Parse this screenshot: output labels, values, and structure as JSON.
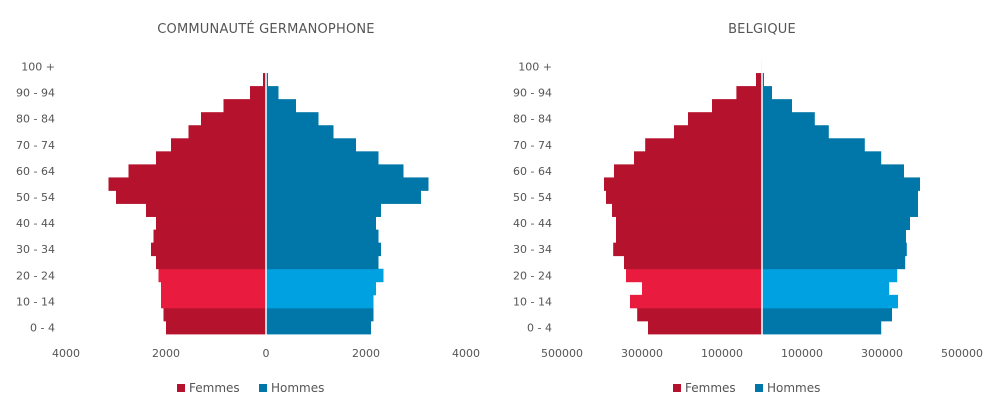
{
  "chart_data": [
    {
      "type": "bar",
      "orientation": "horizontal",
      "layout": "population-pyramid",
      "title": "COMMUNAUTÉ GERMANOPHONE",
      "categories": [
        "0 - 4",
        "5 - 9",
        "10 - 14",
        "15 - 19",
        "20 - 24",
        "25 - 29",
        "30 - 34",
        "35 - 39",
        "40 - 44",
        "45 - 49",
        "50 - 54",
        "55 - 59",
        "60 - 64",
        "65 - 69",
        "70 - 74",
        "75 - 79",
        "80 - 84",
        "85 - 89",
        "90 - 94",
        "95 - 99",
        "100 +"
      ],
      "category_ticks": [
        "0 - 4",
        "10 - 14",
        "20 - 24",
        "30 - 34",
        "40 - 44",
        "50 - 54",
        "60 - 64",
        "70 - 74",
        "80 - 84",
        "90 - 94",
        "100 +"
      ],
      "xlim": [
        -4000,
        4000
      ],
      "x_ticks": [
        -4000,
        -2000,
        0,
        2000,
        4000
      ],
      "x_tick_labels": [
        "4000",
        "2000",
        "0",
        "2000",
        "4000"
      ],
      "highlight_categories": [
        "20 - 24",
        "15 - 19",
        "10 - 14"
      ],
      "series": [
        {
          "name": "Femmes",
          "side": "left",
          "values": [
            2000,
            2050,
            2100,
            2100,
            2150,
            2200,
            2300,
            2250,
            2200,
            2400,
            3000,
            3150,
            2750,
            2200,
            1900,
            1550,
            1300,
            850,
            320,
            60,
            10
          ]
        },
        {
          "name": "Hommes",
          "side": "right",
          "values": [
            2100,
            2150,
            2150,
            2200,
            2350,
            2250,
            2300,
            2250,
            2200,
            2300,
            3100,
            3250,
            2750,
            2250,
            1800,
            1350,
            1050,
            600,
            250,
            40,
            5
          ]
        }
      ],
      "colors": {
        "femmes": "#b5122d",
        "femmes_highlight": "#e91c3f",
        "hommes": "#0077a8",
        "hommes_highlight": "#00a1e1"
      }
    },
    {
      "type": "bar",
      "orientation": "horizontal",
      "layout": "population-pyramid",
      "title": "BELGIQUE",
      "categories": [
        "0 - 4",
        "5 - 9",
        "10 - 14",
        "15 - 19",
        "20 - 24",
        "25 - 29",
        "30 - 34",
        "35 - 39",
        "40 - 44",
        "45 - 49",
        "50 - 54",
        "55 - 59",
        "60 - 64",
        "65 - 69",
        "70 - 74",
        "75 - 79",
        "80 - 84",
        "85 - 89",
        "90 - 94",
        "95 - 99",
        "100 +"
      ],
      "category_ticks": [
        "0 - 4",
        "10 - 14",
        "20 - 24",
        "30 - 34",
        "40 - 44",
        "50 - 54",
        "60 - 64",
        "70 - 74",
        "80 - 84",
        "90 - 94",
        "100 +"
      ],
      "xlim": [
        -500000,
        500000
      ],
      "x_ticks": [
        -500000,
        -300000,
        -100000,
        100000,
        300000,
        500000
      ],
      "x_tick_labels": [
        "500000",
        "300000",
        "100000",
        "100000",
        "300000",
        "500000"
      ],
      "highlight_categories": [
        "20 - 24",
        "15 - 19",
        "10 - 14"
      ],
      "series": [
        {
          "name": "Femmes",
          "side": "left",
          "values": [
            285000,
            312000,
            330000,
            300000,
            340000,
            345000,
            372000,
            365000,
            365000,
            375000,
            390000,
            395000,
            370000,
            320000,
            292000,
            220000,
            185000,
            125000,
            64000,
            15000,
            1500
          ]
        },
        {
          "name": "Hommes",
          "side": "right",
          "values": [
            298000,
            325000,
            340000,
            318000,
            338000,
            358000,
            362000,
            360000,
            370000,
            390000,
            390000,
            395000,
            355000,
            298000,
            257000,
            167000,
            132000,
            75000,
            25000,
            5000,
            300
          ]
        }
      ],
      "colors": {
        "femmes": "#b5122d",
        "femmes_highlight": "#e91c3f",
        "hommes": "#0077a8",
        "hommes_highlight": "#00a1e1"
      }
    }
  ],
  "legend": {
    "femmes": "Femmes",
    "hommes": "Hommes"
  }
}
